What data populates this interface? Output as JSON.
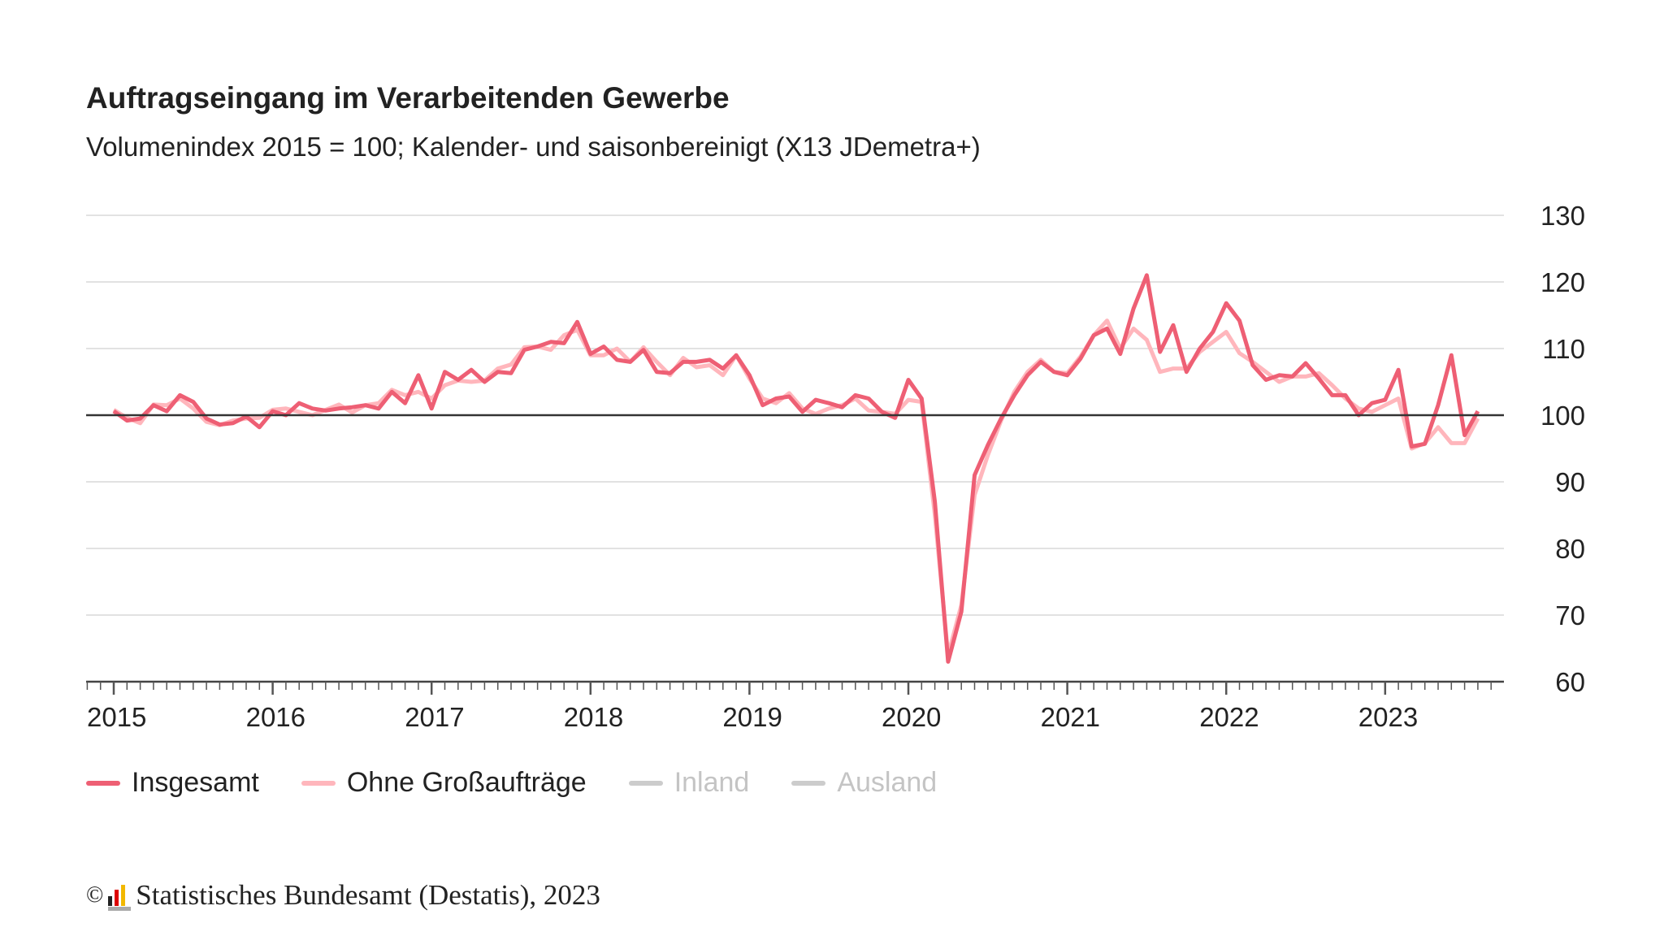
{
  "chart_data": {
    "type": "line",
    "title": "Auftragseingang im Verarbeitenden Gewerbe",
    "subtitle": "Volumenindex 2015 = 100; Kalender- und saisonbereinigt (X13 JDemetra+)",
    "x_start": "2015-01",
    "x_end": "2023-08",
    "frequency": "monthly",
    "x_tick_labels": [
      "2015",
      "2016",
      "2017",
      "2018",
      "2019",
      "2020",
      "2021",
      "2022",
      "2023"
    ],
    "y_tick_labels": [
      "130",
      "120",
      "110",
      "100",
      "90",
      "80",
      "70",
      "60"
    ],
    "ylim": [
      60,
      130
    ],
    "y_ticks": [
      60,
      70,
      80,
      90,
      100,
      110,
      120,
      130
    ],
    "reference_line": 100,
    "grid": true,
    "y_axis_side": "right",
    "legend_position": "bottom-left",
    "series": [
      {
        "name": "Insgesamt",
        "color": "#ee5f74",
        "active": true,
        "values": [
          100.6,
          99.2,
          99.5,
          101.5,
          100.6,
          103,
          102,
          99.5,
          98.6,
          98.8,
          99.8,
          98.2,
          100.6,
          100,
          101.8,
          101,
          100.7,
          101,
          101.2,
          101.5,
          101,
          103.5,
          101.8,
          106,
          101,
          106.5,
          105.3,
          106.8,
          105,
          106.5,
          106.3,
          109.8,
          110.3,
          111,
          110.8,
          114,
          109.2,
          110.3,
          108.3,
          108,
          109.8,
          106.5,
          106.3,
          108,
          108,
          108.3,
          107,
          109,
          106,
          101.5,
          102.5,
          102.8,
          100.5,
          102.3,
          101.8,
          101.2,
          103,
          102.5,
          100.5,
          99.6,
          105.3,
          102.5,
          87,
          63,
          70.5,
          91,
          95.5,
          99.5,
          103,
          106,
          108,
          106.5,
          106,
          108.5,
          112,
          113,
          109.2,
          116,
          121,
          109.5,
          113.5,
          106.5,
          110,
          112.5,
          116.8,
          114.2,
          107.5,
          105.3,
          106,
          105.8,
          107.8,
          105.5,
          103,
          103,
          100,
          101.8,
          102.3,
          106.8,
          95.3,
          95.7,
          101.5,
          109,
          97,
          100.6
        ]
      },
      {
        "name": "Ohne Großaufträge",
        "color": "#ffb6bc",
        "active": true,
        "values": [
          100.8,
          99.6,
          98.8,
          101.6,
          101.5,
          102.5,
          101,
          99,
          98.5,
          99.2,
          99.5,
          99.6,
          100.8,
          101,
          100.5,
          100,
          100.8,
          101.6,
          100.4,
          101.5,
          101.8,
          103.8,
          103,
          103.5,
          102.5,
          104.5,
          105.2,
          105,
          105.2,
          107,
          107.6,
          110.2,
          110.3,
          109.8,
          112,
          112.8,
          109,
          109,
          110,
          108,
          110.2,
          108,
          106,
          108.6,
          107.2,
          107.5,
          106,
          109,
          105.5,
          102.5,
          101.8,
          103.3,
          101,
          100.2,
          101,
          101.5,
          102.5,
          100.7,
          100.5,
          100.2,
          102.3,
          102,
          85,
          64,
          71.5,
          88,
          94,
          99.2,
          103.5,
          106.5,
          108.3,
          106.5,
          106.3,
          108.8,
          112,
          114.2,
          110,
          113,
          111.3,
          106.5,
          107,
          107,
          109.5,
          111,
          112.5,
          109.3,
          108,
          106.5,
          105,
          105.8,
          105.8,
          106.3,
          104.5,
          102.5,
          101,
          100.5,
          101.5,
          102.5,
          95,
          95.8,
          98.2,
          95.8,
          95.8,
          99.5
        ]
      },
      {
        "name": "Inland",
        "color": "#cccccc",
        "active": false,
        "values": []
      },
      {
        "name": "Ausland",
        "color": "#cccccc",
        "active": false,
        "values": []
      }
    ]
  },
  "footer": {
    "copyright": "©",
    "source": "Statistisches Bundesamt (Destatis), 2023"
  }
}
